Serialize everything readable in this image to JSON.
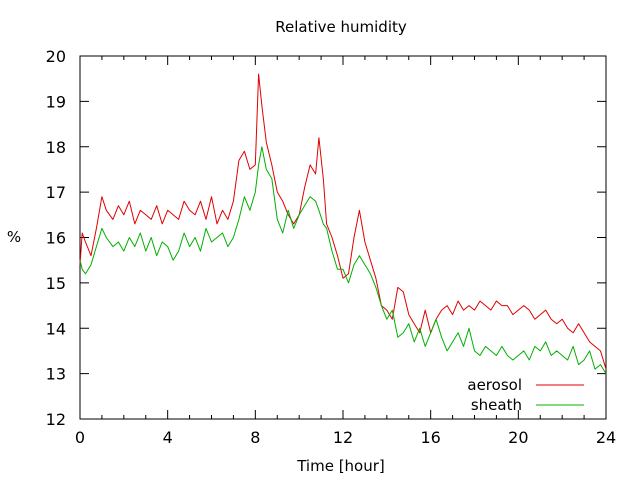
{
  "chart_data": {
    "type": "line",
    "title": "Relative humidity",
    "xlabel": "Time [hour]",
    "ylabel": "%",
    "xlim": [
      0,
      24
    ],
    "ylim": [
      12,
      20
    ],
    "xticks": [
      0,
      4,
      8,
      12,
      16,
      20,
      24
    ],
    "yticks": [
      12,
      13,
      14,
      15,
      16,
      17,
      18,
      19,
      20
    ],
    "grid": false,
    "legend_position": "bottom-right",
    "series": [
      {
        "name": "aerosol",
        "color": "#e00000",
        "x": [
          0,
          0.1,
          0.25,
          0.5,
          0.75,
          1.0,
          1.2,
          1.5,
          1.75,
          2.0,
          2.25,
          2.5,
          2.75,
          3.0,
          3.25,
          3.5,
          3.75,
          4.0,
          4.25,
          4.5,
          4.75,
          5.0,
          5.25,
          5.5,
          5.75,
          6.0,
          6.25,
          6.5,
          6.75,
          7.0,
          7.25,
          7.5,
          7.75,
          8.0,
          8.15,
          8.3,
          8.5,
          8.75,
          9.0,
          9.25,
          9.5,
          9.75,
          10.0,
          10.25,
          10.5,
          10.75,
          10.9,
          11.1,
          11.25,
          11.5,
          11.75,
          12.0,
          12.25,
          12.5,
          12.75,
          13.0,
          13.25,
          13.5,
          13.75,
          14.0,
          14.25,
          14.5,
          14.75,
          15.0,
          15.25,
          15.5,
          15.75,
          16.0,
          16.25,
          16.5,
          16.75,
          17.0,
          17.25,
          17.5,
          17.75,
          18.0,
          18.25,
          18.5,
          18.75,
          19.0,
          19.25,
          19.5,
          19.75,
          20.0,
          20.25,
          20.5,
          20.75,
          21.0,
          21.25,
          21.5,
          21.75,
          22.0,
          22.25,
          22.5,
          22.75,
          23.0,
          23.25,
          23.5,
          23.75,
          24.0
        ],
        "values": [
          15.4,
          16.1,
          15.9,
          15.6,
          16.2,
          16.9,
          16.6,
          16.4,
          16.7,
          16.5,
          16.8,
          16.3,
          16.6,
          16.5,
          16.4,
          16.7,
          16.3,
          16.6,
          16.5,
          16.4,
          16.8,
          16.6,
          16.5,
          16.8,
          16.4,
          16.9,
          16.3,
          16.6,
          16.4,
          16.8,
          17.7,
          17.9,
          17.5,
          17.6,
          19.6,
          18.9,
          18.1,
          17.6,
          17.0,
          16.8,
          16.5,
          16.3,
          16.5,
          17.1,
          17.6,
          17.4,
          18.2,
          17.3,
          16.3,
          16.0,
          15.6,
          15.1,
          15.2,
          16.0,
          16.6,
          15.9,
          15.5,
          15.1,
          14.5,
          14.4,
          14.2,
          14.9,
          14.8,
          14.3,
          14.1,
          13.9,
          14.4,
          13.9,
          14.2,
          14.4,
          14.5,
          14.3,
          14.6,
          14.4,
          14.5,
          14.4,
          14.6,
          14.5,
          14.4,
          14.6,
          14.5,
          14.5,
          14.3,
          14.4,
          14.5,
          14.4,
          14.2,
          14.3,
          14.4,
          14.2,
          14.1,
          14.2,
          14.0,
          13.9,
          14.1,
          13.9,
          13.7,
          13.6,
          13.5,
          13.1
        ]
      },
      {
        "name": "sheath",
        "color": "#00b000",
        "x": [
          0,
          0.1,
          0.25,
          0.5,
          0.75,
          1.0,
          1.2,
          1.5,
          1.75,
          2.0,
          2.25,
          2.5,
          2.75,
          3.0,
          3.25,
          3.5,
          3.75,
          4.0,
          4.25,
          4.5,
          4.75,
          5.0,
          5.25,
          5.5,
          5.75,
          6.0,
          6.25,
          6.5,
          6.75,
          7.0,
          7.25,
          7.5,
          7.75,
          8.0,
          8.15,
          8.3,
          8.5,
          8.75,
          9.0,
          9.25,
          9.5,
          9.75,
          10.0,
          10.25,
          10.5,
          10.75,
          10.9,
          11.1,
          11.25,
          11.5,
          11.75,
          12.0,
          12.25,
          12.5,
          12.75,
          13.0,
          13.25,
          13.5,
          13.75,
          14.0,
          14.25,
          14.5,
          14.75,
          15.0,
          15.25,
          15.5,
          15.75,
          16.0,
          16.25,
          16.5,
          16.75,
          17.0,
          17.25,
          17.5,
          17.75,
          18.0,
          18.25,
          18.5,
          18.75,
          19.0,
          19.25,
          19.5,
          19.75,
          20.0,
          20.25,
          20.5,
          20.75,
          21.0,
          21.25,
          21.5,
          21.75,
          22.0,
          22.25,
          22.5,
          22.75,
          23.0,
          23.25,
          23.5,
          23.75,
          24.0
        ],
        "values": [
          15.5,
          15.3,
          15.2,
          15.4,
          15.8,
          16.2,
          16.0,
          15.8,
          15.9,
          15.7,
          16.0,
          15.8,
          16.1,
          15.7,
          16.0,
          15.6,
          15.9,
          15.8,
          15.5,
          15.7,
          16.1,
          15.8,
          16.0,
          15.7,
          16.2,
          15.9,
          16.0,
          16.1,
          15.8,
          16.0,
          16.4,
          16.9,
          16.6,
          17.0,
          17.6,
          18.0,
          17.5,
          17.3,
          16.4,
          16.1,
          16.6,
          16.2,
          16.5,
          16.7,
          16.9,
          16.8,
          16.6,
          16.3,
          16.2,
          15.7,
          15.3,
          15.3,
          15.0,
          15.4,
          15.6,
          15.4,
          15.2,
          14.9,
          14.5,
          14.2,
          14.4,
          13.8,
          13.9,
          14.1,
          13.7,
          14.0,
          13.6,
          13.9,
          14.2,
          13.8,
          13.5,
          13.7,
          13.9,
          13.6,
          14.0,
          13.5,
          13.4,
          13.6,
          13.5,
          13.4,
          13.6,
          13.4,
          13.3,
          13.4,
          13.5,
          13.3,
          13.6,
          13.5,
          13.7,
          13.4,
          13.5,
          13.4,
          13.3,
          13.6,
          13.2,
          13.3,
          13.5,
          13.1,
          13.2,
          13.0
        ]
      }
    ]
  }
}
